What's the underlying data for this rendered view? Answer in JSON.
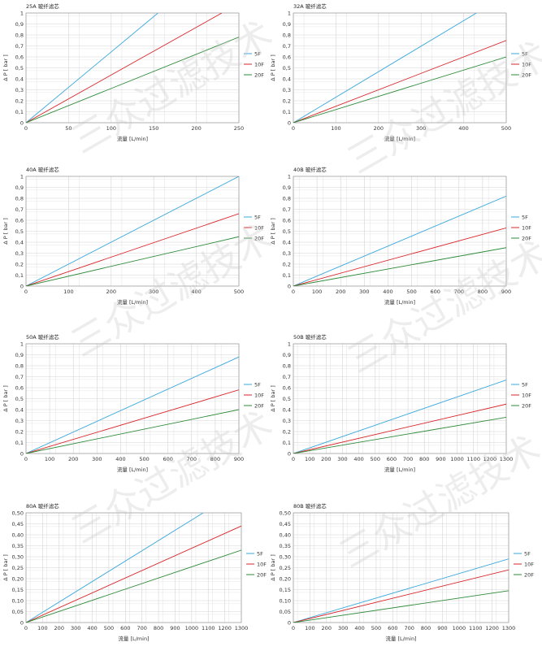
{
  "chart_data": [
    {
      "type": "line",
      "title": "25A 玻纤滤芯",
      "xlabel": "流量 [L/min]",
      "ylabel": "Δ P [ bar ]",
      "xlim": [
        0,
        250
      ],
      "ylim": [
        0,
        1
      ],
      "x_ticks": [
        "0",
        "50",
        "100",
        "150",
        "200",
        "250"
      ],
      "y_ticks": [
        "0",
        "0,1",
        "0,2",
        "0,3",
        "0,4",
        "0,5",
        "0,6",
        "0,7",
        "0,8",
        "0,9",
        "1"
      ],
      "grid": true,
      "legend_position": "right",
      "series": [
        {
          "name": "5F",
          "color": "#3aa8dc",
          "x": [
            0,
            155
          ],
          "y": [
            0,
            1
          ]
        },
        {
          "name": "10F",
          "color": "#d9262b",
          "x": [
            0,
            230
          ],
          "y": [
            0,
            1
          ]
        },
        {
          "name": "20F",
          "color": "#2e8b3a",
          "x": [
            0,
            250
          ],
          "y": [
            0,
            0.78
          ]
        }
      ]
    },
    {
      "type": "line",
      "title": "32A 玻纤滤芯",
      "xlabel": "流量 [L/min]",
      "ylabel": "Δ P [ bar ]",
      "xlim": [
        0,
        500
      ],
      "ylim": [
        0,
        1
      ],
      "x_ticks": [
        "0",
        "100",
        "200",
        "300",
        "400",
        "500"
      ],
      "y_ticks": [
        "0",
        "0,1",
        "0,2",
        "0,3",
        "0,4",
        "0,5",
        "0,6",
        "0,7",
        "0,8",
        "0,9",
        "1"
      ],
      "grid": true,
      "legend_position": "right",
      "series": [
        {
          "name": "5F",
          "color": "#3aa8dc",
          "x": [
            0,
            430
          ],
          "y": [
            0,
            1
          ]
        },
        {
          "name": "10F",
          "color": "#d9262b",
          "x": [
            0,
            500
          ],
          "y": [
            0,
            0.75
          ]
        },
        {
          "name": "20F",
          "color": "#2e8b3a",
          "x": [
            0,
            500
          ],
          "y": [
            0,
            0.6
          ]
        }
      ]
    },
    {
      "type": "line",
      "title": "40A 玻纤滤芯",
      "xlabel": "流量 [L/min]",
      "ylabel": "Δ P [ bar ]",
      "xlim": [
        0,
        500
      ],
      "ylim": [
        0,
        1
      ],
      "x_ticks": [
        "0",
        "100",
        "200",
        "300",
        "400",
        "500"
      ],
      "y_ticks": [
        "0",
        "0,1",
        "0,2",
        "0,3",
        "0,4",
        "0,5",
        "0,6",
        "0,7",
        "0,8",
        "0,9",
        "1"
      ],
      "grid": true,
      "legend_position": "right",
      "series": [
        {
          "name": "5F",
          "color": "#3aa8dc",
          "x": [
            0,
            500
          ],
          "y": [
            0,
            1
          ]
        },
        {
          "name": "10F",
          "color": "#d9262b",
          "x": [
            0,
            500
          ],
          "y": [
            0,
            0.66
          ]
        },
        {
          "name": "20F",
          "color": "#2e8b3a",
          "x": [
            0,
            500
          ],
          "y": [
            0,
            0.45
          ]
        }
      ]
    },
    {
      "type": "line",
      "title": "40B 玻纤滤芯",
      "xlabel": "流量 [L/min]",
      "ylabel": "Δ P [ bar ]",
      "xlim": [
        0,
        900
      ],
      "ylim": [
        0,
        1
      ],
      "x_ticks": [
        "0",
        "100",
        "200",
        "300",
        "400",
        "500",
        "600",
        "700",
        "800",
        "900"
      ],
      "y_ticks": [
        "0",
        "0,1",
        "0,2",
        "0,3",
        "0,4",
        "0,5",
        "0,6",
        "0,7",
        "0,8",
        "0,9",
        "1"
      ],
      "grid": true,
      "legend_position": "right",
      "series": [
        {
          "name": "5F",
          "color": "#3aa8dc",
          "x": [
            0,
            900
          ],
          "y": [
            0,
            0.82
          ]
        },
        {
          "name": "10F",
          "color": "#d9262b",
          "x": [
            0,
            900
          ],
          "y": [
            0,
            0.53
          ]
        },
        {
          "name": "20F",
          "color": "#2e8b3a",
          "x": [
            0,
            900
          ],
          "y": [
            0,
            0.35
          ]
        }
      ]
    },
    {
      "type": "line",
      "title": "50A 玻纤滤芯",
      "xlabel": "流量 [L/min]",
      "ylabel": "Δ P [ bar ]",
      "xlim": [
        0,
        900
      ],
      "ylim": [
        0,
        1
      ],
      "x_ticks": [
        "0",
        "100",
        "200",
        "300",
        "400",
        "500",
        "600",
        "700",
        "800",
        "900"
      ],
      "y_ticks": [
        "0",
        "0,1",
        "0,2",
        "0,3",
        "0,4",
        "0,5",
        "0,6",
        "0,7",
        "0,8",
        "0,9",
        "1"
      ],
      "grid": true,
      "legend_position": "right",
      "series": [
        {
          "name": "5F",
          "color": "#3aa8dc",
          "x": [
            0,
            900
          ],
          "y": [
            0,
            0.88
          ]
        },
        {
          "name": "10F",
          "color": "#d9262b",
          "x": [
            0,
            900
          ],
          "y": [
            0,
            0.58
          ]
        },
        {
          "name": "20F",
          "color": "#2e8b3a",
          "x": [
            0,
            900
          ],
          "y": [
            0,
            0.4
          ]
        }
      ]
    },
    {
      "type": "line",
      "title": "50B 玻纤滤芯",
      "xlabel": "流量 [L/min]",
      "ylabel": "Δ P [ bar ]",
      "xlim": [
        0,
        1300
      ],
      "ylim": [
        0,
        1
      ],
      "x_ticks": [
        "0",
        "100",
        "200",
        "300",
        "400",
        "500",
        "600",
        "700",
        "800",
        "900",
        "1000",
        "1100",
        "1200",
        "1300"
      ],
      "y_ticks": [
        "0",
        "0,1",
        "0,2",
        "0,3",
        "0,4",
        "0,5",
        "0,6",
        "0,7",
        "0,8",
        "0,9",
        "1"
      ],
      "grid": true,
      "legend_position": "right",
      "series": [
        {
          "name": "5F",
          "color": "#3aa8dc",
          "x": [
            0,
            1300
          ],
          "y": [
            0,
            0.67
          ]
        },
        {
          "name": "10F",
          "color": "#d9262b",
          "x": [
            0,
            1300
          ],
          "y": [
            0,
            0.45
          ]
        },
        {
          "name": "20F",
          "color": "#2e8b3a",
          "x": [
            0,
            1300
          ],
          "y": [
            0,
            0.33
          ]
        }
      ]
    },
    {
      "type": "line",
      "title": "80A 玻纤滤芯",
      "xlabel": "流量 [L/min]",
      "ylabel": "Δ P [ bar ]",
      "xlim": [
        0,
        1300
      ],
      "ylim": [
        0,
        0.5
      ],
      "x_ticks": [
        "0",
        "100",
        "200",
        "300",
        "400",
        "500",
        "600",
        "700",
        "800",
        "900",
        "1000",
        "1100",
        "1200",
        "1300"
      ],
      "y_ticks": [
        "0",
        "0,05",
        "0,10",
        "0,15",
        "0,20",
        "0,25",
        "0,30",
        "0,35",
        "0,40",
        "0,45",
        "0,50"
      ],
      "grid": true,
      "legend_position": "right",
      "series": [
        {
          "name": "5F",
          "color": "#3aa8dc",
          "x": [
            0,
            1070
          ],
          "y": [
            0,
            0.5
          ]
        },
        {
          "name": "10F",
          "color": "#d9262b",
          "x": [
            0,
            1300
          ],
          "y": [
            0,
            0.44
          ]
        },
        {
          "name": "20F",
          "color": "#2e8b3a",
          "x": [
            0,
            1300
          ],
          "y": [
            0,
            0.33
          ]
        }
      ]
    },
    {
      "type": "line",
      "title": "80B 玻纤滤芯",
      "xlabel": "流量 [L/min]",
      "ylabel": "Δ P [ bar ]",
      "xlim": [
        0,
        1300
      ],
      "ylim": [
        0,
        0.5
      ],
      "x_ticks": [
        "0",
        "100",
        "200",
        "300",
        "400",
        "500",
        "600",
        "700",
        "800",
        "900",
        "1000",
        "1100",
        "1200",
        "1300"
      ],
      "y_ticks": [
        "0",
        "0,05",
        "0,10",
        "0,15",
        "0,20",
        "0,25",
        "0,30",
        "0,35",
        "0,40",
        "0,45",
        "0,50"
      ],
      "grid": true,
      "legend_position": "right",
      "series": [
        {
          "name": "5F",
          "color": "#3aa8dc",
          "x": [
            0,
            1300
          ],
          "y": [
            0,
            0.29
          ]
        },
        {
          "name": "10F",
          "color": "#d9262b",
          "x": [
            0,
            1300
          ],
          "y": [
            0,
            0.24
          ]
        },
        {
          "name": "20F",
          "color": "#2e8b3a",
          "x": [
            0,
            1300
          ],
          "y": [
            0,
            0.145
          ]
        }
      ]
    }
  ],
  "watermark": "三众过滤技术"
}
